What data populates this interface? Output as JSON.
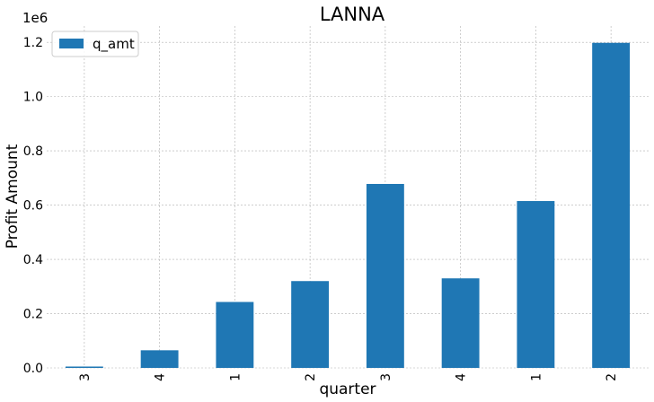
{
  "chart_data": {
    "type": "bar",
    "title": "LANNA",
    "xlabel": "quarter",
    "ylabel": "Profit Amount",
    "offset_label": "1e6",
    "categories": [
      "3",
      "4",
      "1",
      "2",
      "3",
      "4",
      "1",
      "2"
    ],
    "series": [
      {
        "name": "q_amt",
        "values": [
          5000,
          65000,
          243000,
          320000,
          678000,
          330000,
          615000,
          1198000
        ]
      }
    ],
    "ylim": [
      0,
      1260000
    ],
    "yticks": [
      0,
      200000,
      400000,
      600000,
      800000,
      1000000,
      1200000
    ],
    "ytick_labels": [
      "0.0",
      "0.2",
      "0.4",
      "0.6",
      "0.8",
      "1.0",
      "1.2"
    ],
    "grid": true,
    "legend_position": "top-left",
    "bar_color": "#1f77b4"
  }
}
